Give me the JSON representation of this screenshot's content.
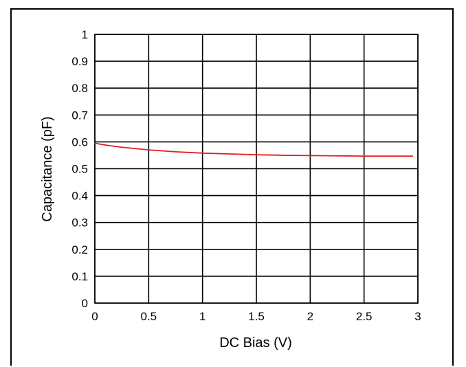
{
  "chart_data": {
    "type": "line",
    "title": "",
    "xlabel": "DC Bias (V)",
    "ylabel": "Capacitance (pF)",
    "xlim": [
      0,
      3
    ],
    "ylim": [
      0,
      1
    ],
    "grid": true,
    "legend": "none",
    "x_tick_labels": [
      "0",
      "0.5",
      "1",
      "1.5",
      "2",
      "2.5",
      "3"
    ],
    "y_tick_labels": [
      "0",
      "0.1",
      "0.2",
      "0.3",
      "0.4",
      "0.5",
      "0.6",
      "0.7",
      "0.8",
      "0.9",
      "1"
    ],
    "series": [
      {
        "color": "#e8191c",
        "x": [
          0,
          0.1,
          0.25,
          0.5,
          0.75,
          1,
          1.25,
          1.5,
          1.75,
          2,
          2.25,
          2.5,
          2.75,
          2.95
        ],
        "values": [
          0.595,
          0.588,
          0.58,
          0.57,
          0.563,
          0.558,
          0.555,
          0.552,
          0.55,
          0.549,
          0.548,
          0.547,
          0.547,
          0.547
        ]
      }
    ]
  }
}
